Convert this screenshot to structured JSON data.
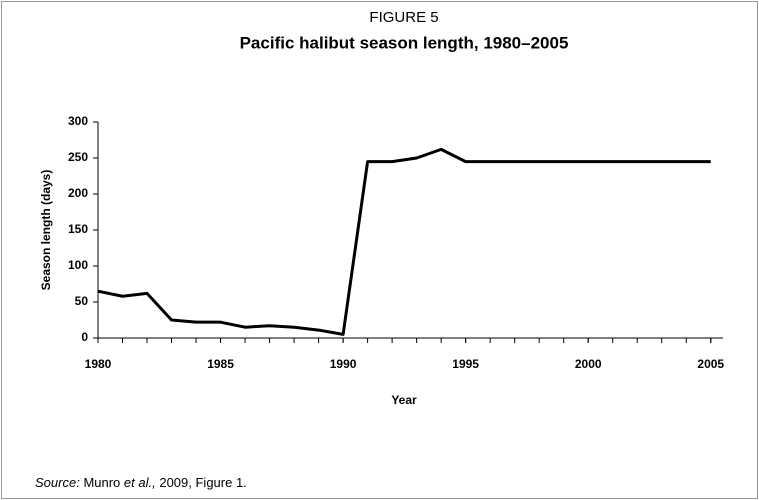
{
  "chart_data": {
    "type": "line",
    "figure_label": "FIGURE 5",
    "title": "Pacific halibut season length, 1980–2005",
    "x_label": "Year",
    "y_label": "Season length (days)",
    "x": [
      1980,
      1981,
      1982,
      1983,
      1984,
      1985,
      1986,
      1987,
      1988,
      1989,
      1990,
      1991,
      1992,
      1993,
      1994,
      1995,
      1996,
      1997,
      1998,
      1999,
      2000,
      2001,
      2002,
      2003,
      2004,
      2005
    ],
    "values": [
      65,
      58,
      62,
      25,
      22,
      22,
      15,
      17,
      15,
      11,
      5,
      245,
      245,
      250,
      262,
      245,
      245,
      245,
      245,
      245,
      245,
      245,
      245,
      245,
      245,
      245
    ],
    "color": "#000000",
    "xlim": [
      1980,
      2005.5
    ],
    "xticks": [
      1980,
      1985,
      1990,
      1995,
      2000,
      2005
    ],
    "ylim": [
      0,
      300
    ],
    "yticks": [
      0,
      50,
      100,
      150,
      200,
      250,
      300
    ],
    "grid": false,
    "source": {
      "label": "Source:",
      "author": "Munro",
      "etal": "et al.,",
      "rest": "2009, Figure 1."
    }
  }
}
